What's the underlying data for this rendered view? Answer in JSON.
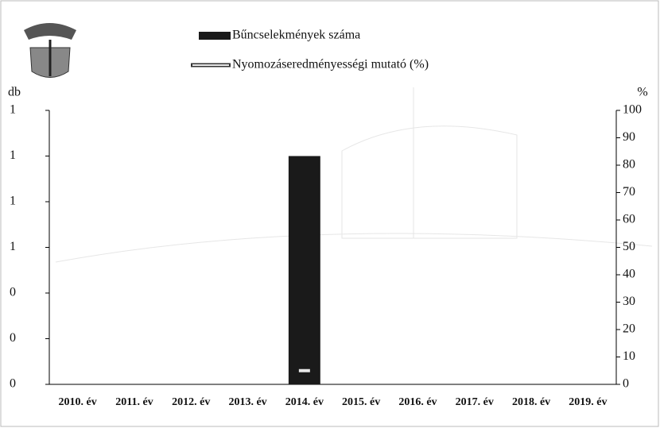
{
  "chart_data": {
    "type": "bar-line",
    "y_label": "db",
    "y2_label": "%",
    "categories": [
      "2010. év",
      "2011. év",
      "2012. év",
      "2013. év",
      "2014. év",
      "2015. év",
      "2016. év",
      "2017. év",
      "2018. év",
      "2019. év"
    ],
    "series": [
      {
        "name": "Bűncselekmények száma",
        "type": "bar",
        "color": "#1a1a1a",
        "values": [
          0,
          0,
          0,
          0,
          1,
          0,
          0,
          0,
          0,
          0
        ]
      },
      {
        "name": "Nyomozáseredményességi mutató (%)",
        "type": "line",
        "axis": "y2",
        "color": "#e8e8e8",
        "values": [
          null,
          null,
          null,
          null,
          5,
          null,
          null,
          null,
          null,
          null
        ]
      }
    ],
    "ylim": [
      0,
      1.2
    ],
    "yticks": [
      {
        "value": 0,
        "label": "0"
      },
      {
        "value": 0.2,
        "label": "0"
      },
      {
        "value": 0.4,
        "label": "0"
      },
      {
        "value": 0.6,
        "label": "1"
      },
      {
        "value": 0.8,
        "label": "1"
      },
      {
        "value": 1.0,
        "label": "1"
      },
      {
        "value": 1.2,
        "label": "1"
      }
    ],
    "y2lim": [
      0,
      100
    ],
    "y2ticks": [
      0,
      10,
      20,
      30,
      40,
      50,
      60,
      70,
      80,
      90,
      100
    ]
  }
}
